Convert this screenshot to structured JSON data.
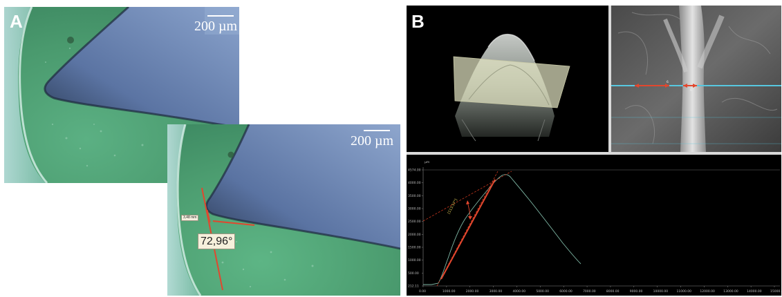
{
  "panel_a": {
    "letter": "A",
    "scale_bar_top": "200 µm",
    "scale_bar_bottom": "200 µm",
    "angle_value": "72,96°",
    "small_tag": "3,48 mm"
  },
  "panel_b": {
    "letter": "B",
    "profile": {
      "y_ticks": [
        "4574.00",
        "4000.00",
        "3500.00",
        "3000.00",
        "2500.00",
        "2000.00",
        "1500.00",
        "1000.00",
        "500.00",
        "212.11"
      ],
      "x_ticks": [
        "0.00",
        "1000.00",
        "2000.00",
        "3000.00",
        "4000.00",
        "5000.00",
        "6000.00",
        "7000.00",
        "8000.00",
        "9000.00",
        "10000.00",
        "11000.00",
        "12000.00",
        "13000.00",
        "14000.00",
        "15000.00"
      ],
      "unit_marker": "µm",
      "angle_annotation": "[113.57°]"
    },
    "sem": {
      "labels": [
        "6",
        "6"
      ]
    }
  },
  "colors": {
    "background": "#ffffff",
    "tissue_green": "#4f9f72",
    "canal_blue": "#6f87b3",
    "measure_red": "#e2472e",
    "profile_red": "#c9371e",
    "profile_curve": "#7fb8a6",
    "cyan_line": "#57c8e0"
  }
}
